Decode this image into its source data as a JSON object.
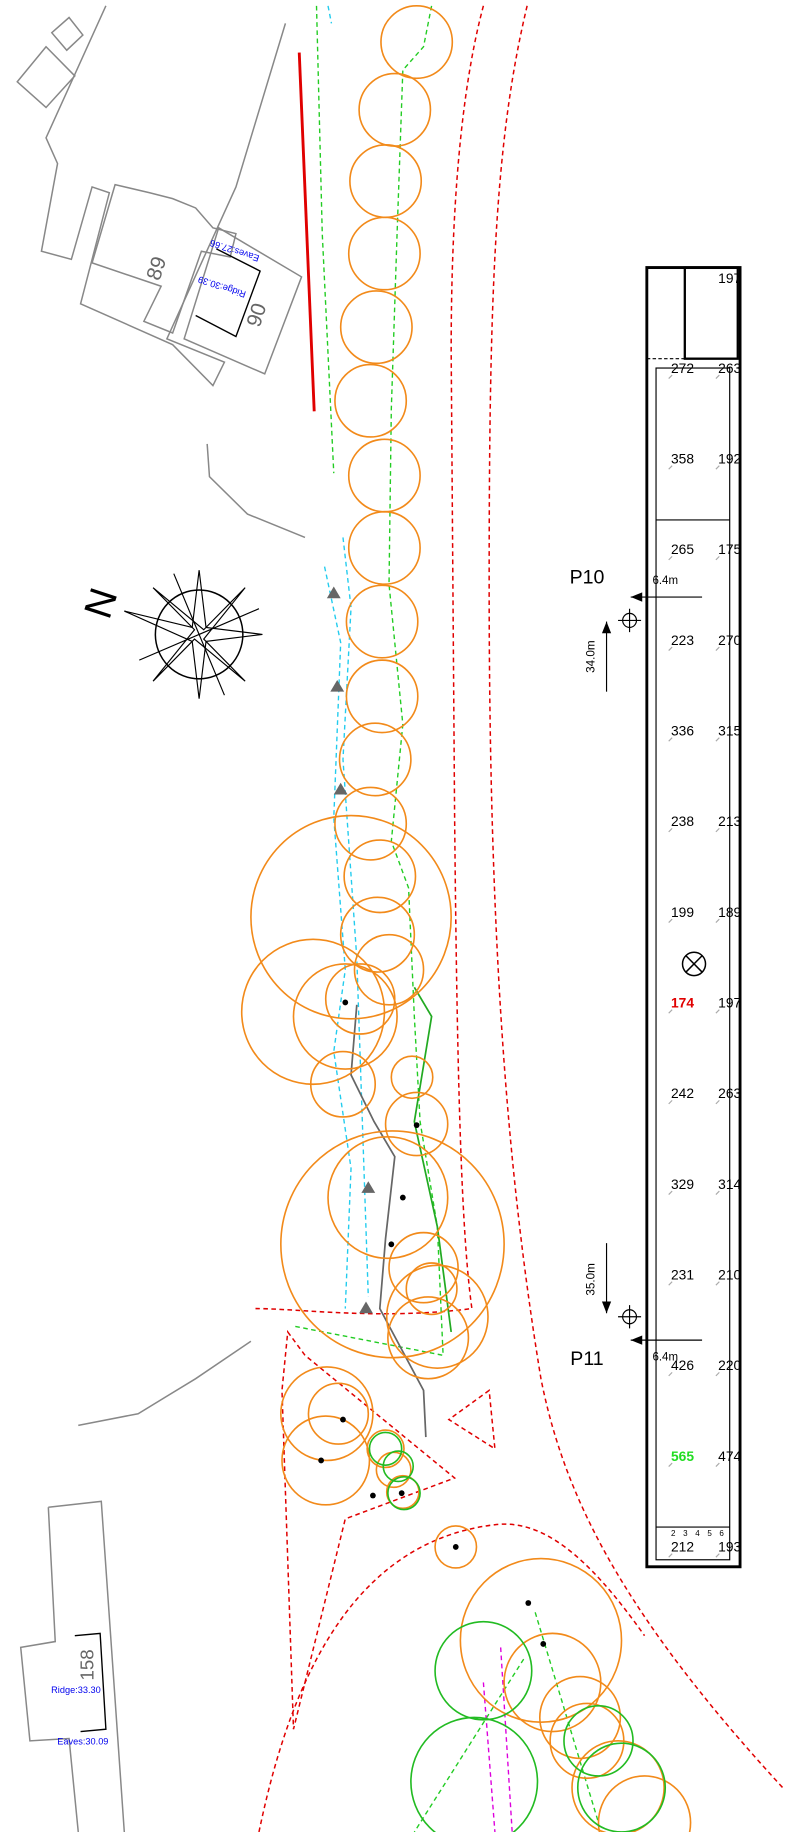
{
  "plan": {
    "houses": [
      {
        "number": "89",
        "labels": []
      },
      {
        "number": "90",
        "labels": [
          "Eaves:27.66",
          "Ridge:30.39"
        ]
      },
      {
        "number": "158",
        "labels": [
          "Ridge:33.30",
          "Eaves:30.09"
        ]
      }
    ],
    "north_label": "N",
    "markers": [
      {
        "label": "P10",
        "offset": "6.4m",
        "distance": "34.0m"
      },
      {
        "label": "P11",
        "offset": "6.4m",
        "distance": "35.0m"
      }
    ],
    "strip": {
      "top_value": "197",
      "rows": [
        {
          "left": "272",
          "right": "263"
        },
        {
          "left": "358",
          "right": "192"
        },
        {
          "left": "265",
          "right": "175"
        },
        {
          "left": "223",
          "right": "270"
        },
        {
          "left": "336",
          "right": "315"
        },
        {
          "left": "238",
          "right": "213"
        },
        {
          "left": "199",
          "right": "189"
        },
        {
          "left": "174",
          "right": "197",
          "color": "#e00000"
        },
        {
          "left": "242",
          "right": "263"
        },
        {
          "left": "329",
          "right": "314"
        },
        {
          "left": "231",
          "right": "210"
        },
        {
          "left": "426",
          "right": "220"
        },
        {
          "left": "565",
          "right": "474",
          "color": "#22dd22"
        },
        {
          "left": "212",
          "right": "193"
        }
      ],
      "scale_marks": [
        "2",
        "3",
        "4",
        "5",
        "6"
      ]
    }
  }
}
